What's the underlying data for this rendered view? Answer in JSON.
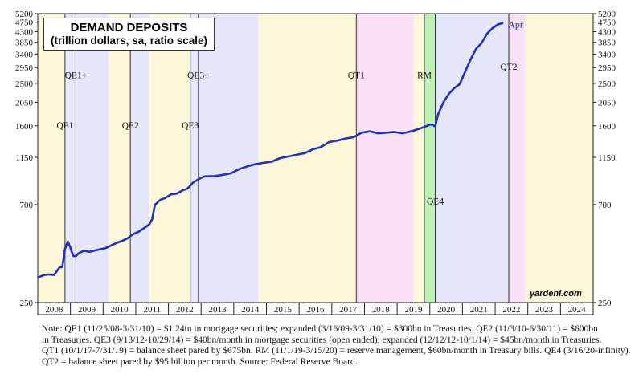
{
  "chart_data": {
    "type": "line",
    "title": "DEMAND DEPOSITS",
    "subtitle": "(trillion dollars, sa, ratio scale)",
    "y_scale": "log",
    "ylim": [
      250,
      5200
    ],
    "y_ticks": [
      250,
      700,
      1150,
      1600,
      2050,
      2500,
      2950,
      3400,
      3850,
      4300,
      4750,
      5200
    ],
    "xlim": [
      "2008-01",
      "2025-01"
    ],
    "x_ticks": [
      "2008",
      "2009",
      "2010",
      "2011",
      "2012",
      "2013",
      "2014",
      "2015",
      "2016",
      "2017",
      "2018",
      "2019",
      "2020",
      "2021",
      "2022",
      "2023",
      "2024"
    ],
    "color": "#1f2fbf",
    "grid": false,
    "shaded_periods": [
      {
        "start": "2008-01",
        "end": "2008-11",
        "color": "#fbf7d8"
      },
      {
        "start": "2008-11",
        "end": "2010-03",
        "color": "#e6e6fb"
      },
      {
        "start": "2010-03",
        "end": "2010-11",
        "color": "#fbf7d8"
      },
      {
        "start": "2010-11",
        "end": "2011-06",
        "color": "#e6e6fb"
      },
      {
        "start": "2011-06",
        "end": "2012-09",
        "color": "#fbf7d8"
      },
      {
        "start": "2012-09",
        "end": "2014-10",
        "color": "#e6e6fb"
      },
      {
        "start": "2014-10",
        "end": "2017-10",
        "color": "#fbf7d8"
      },
      {
        "start": "2017-10",
        "end": "2019-07",
        "color": "#f9e0f7"
      },
      {
        "start": "2019-07",
        "end": "2019-11",
        "color": "#fbf7d8"
      },
      {
        "start": "2019-11",
        "end": "2020-03",
        "color": "#bff0b4"
      },
      {
        "start": "2020-03",
        "end": "2022-06",
        "color": "#e6e6fb"
      },
      {
        "start": "2022-06",
        "end": "2022-12",
        "color": "#f9e0f7"
      },
      {
        "start": "2022-12",
        "end": "2025-01",
        "color": "#fbf7d8"
      }
    ],
    "event_lines": [
      {
        "date": "2008-11",
        "label": "QE1",
        "label_value": 1600
      },
      {
        "date": "2009-03",
        "label": "QE1+",
        "label_value": 2700
      },
      {
        "date": "2010-11",
        "label": "QE2",
        "label_value": 1600
      },
      {
        "date": "2012-09",
        "label": "QE3",
        "label_value": 1600
      },
      {
        "date": "2012-12",
        "label": "QE3+",
        "label_value": 2700
      },
      {
        "date": "2017-10",
        "label": "QT1",
        "label_value": 2700
      },
      {
        "date": "2019-11",
        "label": "RM",
        "label_value": 2700
      },
      {
        "date": "2020-03",
        "label": "QE4",
        "label_value": 720
      },
      {
        "date": "2022-06",
        "label": "QT2",
        "label_value": 2950
      }
    ],
    "end_label": "Apr",
    "series": [
      {
        "x": [
          "2008-01",
          "2008-03",
          "2008-05",
          "2008-07",
          "2008-09",
          "2008-10",
          "2008-11",
          "2008-12",
          "2009-01",
          "2009-02",
          "2009-03",
          "2009-04",
          "2009-06",
          "2009-08",
          "2009-10",
          "2009-12",
          "2010-02",
          "2010-04",
          "2010-06",
          "2010-08",
          "2010-10",
          "2010-12",
          "2011-02",
          "2011-04",
          "2011-06",
          "2011-07",
          "2011-08",
          "2011-10",
          "2011-12",
          "2012-02",
          "2012-04",
          "2012-06",
          "2012-08",
          "2012-10",
          "2012-12",
          "2013-02",
          "2013-04",
          "2013-06",
          "2013-09",
          "2013-12",
          "2014-03",
          "2014-06",
          "2014-09",
          "2014-12",
          "2015-03",
          "2015-06",
          "2015-09",
          "2015-12",
          "2016-03",
          "2016-06",
          "2016-09",
          "2016-12",
          "2017-03",
          "2017-06",
          "2017-09",
          "2017-12",
          "2018-03",
          "2018-06",
          "2018-09",
          "2018-12",
          "2019-03",
          "2019-06",
          "2019-09",
          "2019-12",
          "2020-01",
          "2020-02",
          "2020-03",
          "2020-04",
          "2020-05",
          "2020-06",
          "2020-08",
          "2020-10",
          "2020-12",
          "2021-02",
          "2021-04",
          "2021-06",
          "2021-08",
          "2021-10",
          "2021-12",
          "2022-02",
          "2022-04"
        ],
        "y": [
          325,
          333,
          336,
          334,
          362,
          363,
          440,
          475,
          445,
          408,
          407,
          420,
          431,
          426,
          432,
          438,
          443,
          456,
          468,
          478,
          491,
          513,
          526,
          546,
          569,
          600,
          698,
          735,
          752,
          780,
          785,
          810,
          828,
          882,
          912,
          940,
          942,
          944,
          957,
          972,
          1016,
          1045,
          1070,
          1085,
          1100,
          1140,
          1160,
          1180,
          1200,
          1250,
          1280,
          1350,
          1370,
          1400,
          1420,
          1490,
          1510,
          1480,
          1490,
          1500,
          1480,
          1510,
          1550,
          1600,
          1620,
          1620,
          1590,
          1800,
          1920,
          2050,
          2240,
          2380,
          2480,
          2830,
          3220,
          3590,
          3820,
          4210,
          4460,
          4640,
          4720
        ]
      }
    ]
  },
  "source_tag": "yardeni.com",
  "note_lines": [
    "Note: QE1 (11/25/08-3/31/10) = $1.24tn in mortgage securities; expanded (3/16/09-3/31/10) = $300bn in Treasuries. QE2 (11/3/10-6/30/11) = $600bn",
    "in Treasuries. QE3 (9/13/12-10/29/14) = $40bn/month in mortgage securities (open ended); expanded (12/12/12-10/1/14) = $45bn/month in Treasuries.",
    "QT1 (10/1/17-7/31/19) = balance sheet pared by $675bn. RM (11/1/19-3/15/20) = reserve management, $60bn/month in Treasury bills. QE4 (3/16/20-infinity).",
    "QT2 = balance sheet pared by $95 billion per month. Source: Federal Reserve Board."
  ]
}
